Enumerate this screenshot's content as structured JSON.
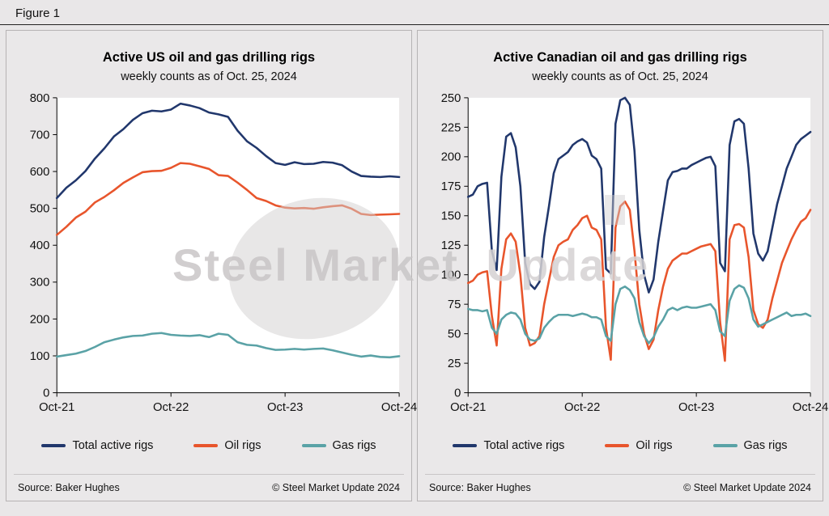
{
  "page": {
    "figure_label": "Figure 1",
    "background": "#e9e7e8"
  },
  "footer": {
    "source": "Source: Baker Hughes",
    "copyright": "© Steel Market Update 2024"
  },
  "watermark": {
    "part1": "Steel Market",
    "part2": "Update"
  },
  "colors": {
    "navy": "#21376c",
    "orange": "#e8552c",
    "teal": "#5aa2a6"
  },
  "chart_data": [
    {
      "id": "us-rigs",
      "type": "line",
      "title": "Active US oil and gas drilling rigs",
      "subtitle": "weekly counts as of Oct. 25, 2024",
      "xlabel": "",
      "ylabel": "",
      "x_tick_labels": [
        "Oct-21",
        "Oct-22",
        "Oct-23",
        "Oct-24"
      ],
      "x_note": "values evenly spaced monthly from Oct-2021 to Oct-2024",
      "ylim": [
        0,
        800
      ],
      "yticks": [
        0,
        100,
        200,
        300,
        400,
        500,
        600,
        700,
        800
      ],
      "grid": false,
      "legend_position": "bottom",
      "series": [
        {
          "id": "total-active-rigs",
          "name": "Total active rigs",
          "color": "#21376c",
          "values": [
            528,
            556,
            576,
            601,
            635,
            663,
            695,
            715,
            740,
            758,
            765,
            763,
            768,
            784,
            779,
            772,
            760,
            755,
            748,
            711,
            682,
            664,
            642,
            623,
            618,
            625,
            620,
            621,
            626,
            624,
            617,
            600,
            588,
            586,
            585,
            587,
            585
          ]
        },
        {
          "id": "oil-rigs",
          "name": "Oil rigs",
          "color": "#e8552c",
          "values": [
            428,
            450,
            475,
            491,
            516,
            531,
            549,
            569,
            584,
            598,
            601,
            602,
            610,
            623,
            621,
            614,
            607,
            590,
            588,
            570,
            550,
            528,
            520,
            508,
            502,
            500,
            501,
            499,
            503,
            506,
            508,
            499,
            485,
            482,
            483,
            484,
            485
          ]
        },
        {
          "id": "gas-rigs",
          "name": "Gas rigs",
          "color": "#5aa2a6",
          "values": [
            98,
            102,
            106,
            113,
            124,
            137,
            144,
            150,
            154,
            155,
            160,
            162,
            157,
            155,
            154,
            156,
            151,
            160,
            157,
            137,
            130,
            128,
            121,
            116,
            117,
            119,
            117,
            119,
            120,
            115,
            109,
            103,
            98,
            101,
            97,
            96,
            99
          ]
        }
      ]
    },
    {
      "id": "canadian-rigs",
      "type": "line",
      "title": "Active Canadian oil and gas drilling rigs",
      "subtitle": "weekly counts as of Oct. 25, 2024",
      "xlabel": "",
      "ylabel": "",
      "x_tick_labels": [
        "Oct-21",
        "Oct-22",
        "Oct-23",
        "Oct-24"
      ],
      "x_note": "values evenly spaced semi-monthly from Oct-2021 to Oct-2024",
      "ylim": [
        0,
        250
      ],
      "yticks": [
        0,
        25,
        50,
        75,
        100,
        125,
        150,
        175,
        200,
        225,
        250
      ],
      "grid": false,
      "legend_position": "bottom",
      "series": [
        {
          "id": "total-active-rigs",
          "name": "Total active rigs",
          "color": "#21376c",
          "values": [
            166,
            168,
            175,
            177,
            178,
            120,
            104,
            183,
            217,
            220,
            208,
            175,
            110,
            92,
            88,
            94,
            132,
            158,
            186,
            198,
            201,
            204,
            210,
            213,
            215,
            212,
            201,
            198,
            190,
            105,
            101,
            228,
            248,
            250,
            244,
            205,
            138,
            100,
            85,
            96,
            128,
            154,
            180,
            187,
            188,
            190,
            190,
            193,
            195,
            197,
            199,
            200,
            192,
            110,
            103,
            210,
            230,
            232,
            228,
            190,
            135,
            118,
            112,
            120,
            140,
            160,
            175,
            190,
            200,
            210,
            215,
            218,
            221
          ]
        },
        {
          "id": "oil-rigs",
          "name": "Oil rigs",
          "color": "#e8552c",
          "values": [
            93,
            95,
            100,
            102,
            103,
            65,
            40,
            105,
            130,
            135,
            128,
            100,
            55,
            40,
            42,
            48,
            75,
            95,
            115,
            125,
            128,
            130,
            138,
            142,
            148,
            150,
            140,
            138,
            130,
            55,
            28,
            140,
            158,
            162,
            155,
            120,
            75,
            50,
            37,
            45,
            70,
            90,
            105,
            112,
            115,
            118,
            118,
            120,
            122,
            124,
            125,
            126,
            120,
            60,
            27,
            130,
            142,
            143,
            140,
            115,
            70,
            58,
            55,
            62,
            80,
            95,
            110,
            120,
            130,
            138,
            145,
            148,
            155
          ]
        },
        {
          "id": "gas-rigs",
          "name": "Gas rigs",
          "color": "#5aa2a6",
          "values": [
            71,
            70,
            70,
            69,
            70,
            55,
            50,
            62,
            66,
            68,
            67,
            62,
            50,
            45,
            44,
            46,
            55,
            60,
            64,
            66,
            66,
            66,
            65,
            66,
            67,
            66,
            64,
            64,
            62,
            48,
            44,
            75,
            88,
            90,
            87,
            80,
            60,
            48,
            42,
            47,
            56,
            62,
            70,
            72,
            70,
            72,
            73,
            72,
            72,
            73,
            74,
            75,
            70,
            52,
            48,
            78,
            88,
            91,
            89,
            80,
            62,
            56,
            58,
            60,
            62,
            64,
            66,
            68,
            65,
            66,
            66,
            67,
            65
          ]
        }
      ]
    }
  ]
}
